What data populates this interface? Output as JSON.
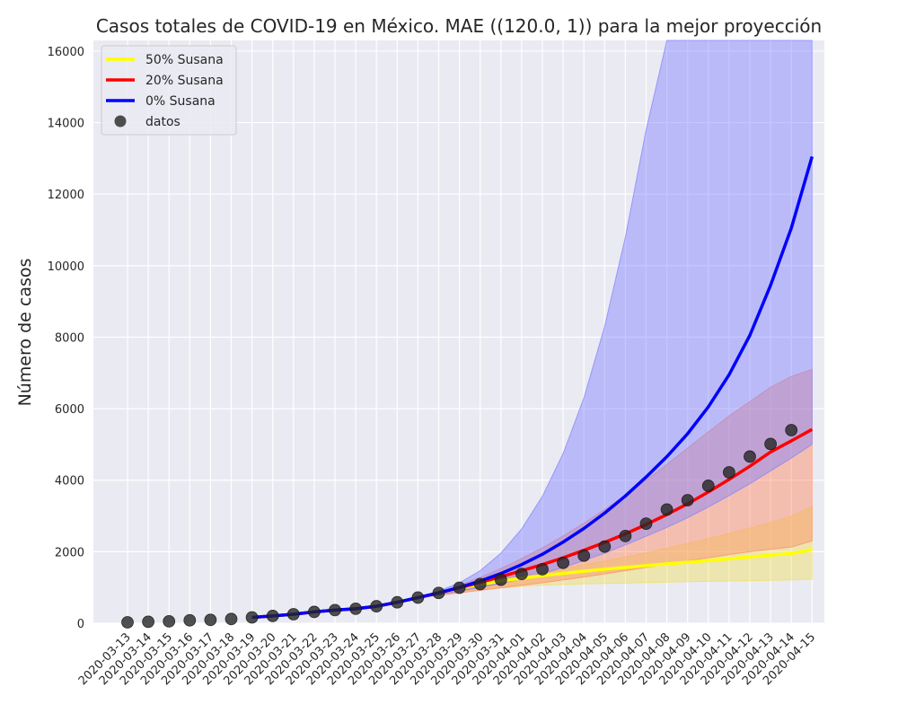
{
  "chart_data": {
    "type": "line",
    "title": "Casos totales de COVID-19 en México. MAE ((120.0, 1)) para la mejor proyección",
    "xlabel": "",
    "ylabel": "Número de casos",
    "ylim": [
      0,
      16300
    ],
    "y_ticks": [
      0,
      2000,
      4000,
      6000,
      8000,
      10000,
      12000,
      14000,
      16000
    ],
    "grid": true,
    "legend_position": "top-left",
    "categories": [
      "2020-03-13",
      "2020-03-14",
      "2020-03-15",
      "2020-03-16",
      "2020-03-17",
      "2020-03-18",
      "2020-03-19",
      "2020-03-20",
      "2020-03-21",
      "2020-03-22",
      "2020-03-23",
      "2020-03-24",
      "2020-03-25",
      "2020-03-26",
      "2020-03-27",
      "2020-03-28",
      "2020-03-29",
      "2020-03-30",
      "2020-03-31",
      "2020-04-01",
      "2020-04-02",
      "2020-04-03",
      "2020-04-04",
      "2020-04-05",
      "2020-04-06",
      "2020-04-07",
      "2020-04-08",
      "2020-04-09",
      "2020-04-10",
      "2020-04-11",
      "2020-04-12",
      "2020-04-13",
      "2020-04-14",
      "2020-04-15"
    ],
    "series": [
      {
        "name": "50% Susana",
        "color": "#ffff00",
        "band_color": "#f0e060",
        "x": [
          "2020-03-19",
          "2020-03-20",
          "2020-03-21",
          "2020-03-22",
          "2020-03-23",
          "2020-03-24",
          "2020-03-25",
          "2020-03-26",
          "2020-03-27",
          "2020-03-28",
          "2020-03-29",
          "2020-03-30",
          "2020-03-31",
          "2020-04-01",
          "2020-04-02",
          "2020-04-03",
          "2020-04-04",
          "2020-04-05",
          "2020-04-06",
          "2020-04-07",
          "2020-04-08",
          "2020-04-09",
          "2020-04-10",
          "2020-04-11",
          "2020-04-12",
          "2020-04-13",
          "2020-04-14",
          "2020-04-15"
        ],
        "values": [
          164,
          203,
          251,
          316,
          367,
          405,
          475,
          585,
          717,
          848,
          974,
          1086,
          1180,
          1260,
          1330,
          1395,
          1455,
          1510,
          1560,
          1610,
          1660,
          1705,
          1750,
          1800,
          1850,
          1900,
          1950,
          2060
        ],
        "lower": [
          164,
          203,
          251,
          316,
          367,
          405,
          475,
          585,
          700,
          800,
          880,
          940,
          990,
          1030,
          1060,
          1080,
          1100,
          1110,
          1120,
          1135,
          1150,
          1160,
          1170,
          1180,
          1190,
          1200,
          1210,
          1230
        ],
        "upper": [
          164,
          203,
          251,
          316,
          367,
          405,
          475,
          585,
          717,
          848,
          980,
          1110,
          1230,
          1340,
          1440,
          1540,
          1640,
          1740,
          1850,
          1970,
          2100,
          2230,
          2370,
          2510,
          2660,
          2820,
          2990,
          3260
        ]
      },
      {
        "name": "20% Susana",
        "color": "#ff0000",
        "band_color": "#ff8a60",
        "x": [
          "2020-03-19",
          "2020-03-20",
          "2020-03-21",
          "2020-03-22",
          "2020-03-23",
          "2020-03-24",
          "2020-03-25",
          "2020-03-26",
          "2020-03-27",
          "2020-03-28",
          "2020-03-29",
          "2020-03-30",
          "2020-03-31",
          "2020-04-01",
          "2020-04-02",
          "2020-04-03",
          "2020-04-04",
          "2020-04-05",
          "2020-04-06",
          "2020-04-07",
          "2020-04-08",
          "2020-04-09",
          "2020-04-10",
          "2020-04-11",
          "2020-04-12",
          "2020-04-13",
          "2020-04-14",
          "2020-04-15"
        ],
        "values": [
          164,
          203,
          251,
          316,
          367,
          405,
          475,
          585,
          717,
          848,
          990,
          1140,
          1300,
          1470,
          1640,
          1830,
          2040,
          2260,
          2500,
          2760,
          3040,
          3340,
          3670,
          4020,
          4390,
          4790,
          5100,
          5420
        ],
        "lower": [
          164,
          203,
          251,
          316,
          367,
          405,
          475,
          585,
          700,
          780,
          850,
          920,
          990,
          1060,
          1130,
          1210,
          1290,
          1380,
          1470,
          1560,
          1650,
          1740,
          1830,
          1920,
          2000,
          2070,
          2130,
          2300
        ],
        "upper": [
          164,
          203,
          251,
          316,
          367,
          405,
          475,
          585,
          717,
          870,
          1060,
          1280,
          1530,
          1810,
          2110,
          2440,
          2800,
          3180,
          3580,
          4000,
          4440,
          4900,
          5350,
          5800,
          6200,
          6600,
          6900,
          7100
        ]
      },
      {
        "name": "0% Susana",
        "color": "#0000ff",
        "band_color": "#8080ff",
        "x": [
          "2020-03-19",
          "2020-03-20",
          "2020-03-21",
          "2020-03-22",
          "2020-03-23",
          "2020-03-24",
          "2020-03-25",
          "2020-03-26",
          "2020-03-27",
          "2020-03-28",
          "2020-03-29",
          "2020-03-30",
          "2020-03-31",
          "2020-04-01",
          "2020-04-02",
          "2020-04-03",
          "2020-04-04",
          "2020-04-05",
          "2020-04-06",
          "2020-04-07",
          "2020-04-08",
          "2020-04-09",
          "2020-04-10",
          "2020-04-11",
          "2020-04-12",
          "2020-04-13",
          "2020-04-14",
          "2020-04-15"
        ],
        "values": [
          164,
          203,
          251,
          316,
          367,
          405,
          475,
          585,
          717,
          848,
          1000,
          1180,
          1390,
          1640,
          1930,
          2270,
          2650,
          3080,
          3560,
          4090,
          4660,
          5300,
          6050,
          6950,
          8050,
          9450,
          11050,
          13050
        ],
        "lower": [
          164,
          203,
          251,
          316,
          367,
          405,
          475,
          585,
          700,
          800,
          900,
          1000,
          1110,
          1240,
          1390,
          1560,
          1750,
          1960,
          2190,
          2430,
          2680,
          2950,
          3250,
          3570,
          3900,
          4260,
          4620,
          5000
        ],
        "upper": [
          164,
          203,
          251,
          316,
          367,
          405,
          475,
          585,
          717,
          900,
          1130,
          1470,
          1960,
          2640,
          3550,
          4750,
          6300,
          8300,
          10800,
          13800,
          16300,
          16300,
          16300,
          16300,
          16300,
          16300,
          16300,
          16300
        ]
      }
    ],
    "scatter": {
      "name": "datos",
      "color": "#262626",
      "x": [
        "2020-03-13",
        "2020-03-14",
        "2020-03-15",
        "2020-03-16",
        "2020-03-17",
        "2020-03-18",
        "2020-03-19",
        "2020-03-20",
        "2020-03-21",
        "2020-03-22",
        "2020-03-23",
        "2020-03-24",
        "2020-03-25",
        "2020-03-26",
        "2020-03-27",
        "2020-03-28",
        "2020-03-29",
        "2020-03-30",
        "2020-03-31",
        "2020-04-01",
        "2020-04-02",
        "2020-04-03",
        "2020-04-04",
        "2020-04-05",
        "2020-04-06",
        "2020-04-07",
        "2020-04-08",
        "2020-04-09",
        "2020-04-10",
        "2020-04-11",
        "2020-04-12",
        "2020-04-13",
        "2020-04-14"
      ],
      "values": [
        26,
        41,
        53,
        82,
        93,
        118,
        164,
        203,
        251,
        316,
        367,
        405,
        475,
        585,
        717,
        848,
        993,
        1094,
        1215,
        1378,
        1510,
        1688,
        1890,
        2143,
        2439,
        2785,
        3181,
        3441,
        3844,
        4219,
        4661,
        5014,
        5399
      ]
    }
  }
}
